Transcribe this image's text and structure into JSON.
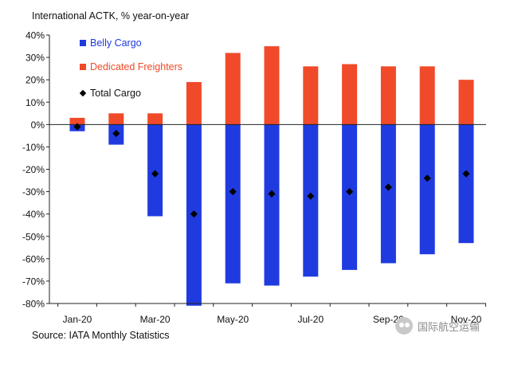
{
  "chart_data": {
    "type": "bar",
    "title": "International ACTK, % year-on-year",
    "source": "Source: IATA Monthly Statistics",
    "categories": [
      "Jan-20",
      "Feb-20",
      "Mar-20",
      "Apr-20",
      "May-20",
      "Jun-20",
      "Jul-20",
      "Aug-20",
      "Sep-20",
      "Oct-20",
      "Nov-20"
    ],
    "x_tick_labels": [
      "Jan-20",
      "",
      "Mar-20",
      "",
      "May-20",
      "",
      "Jul-20",
      "",
      "Sep-20",
      "",
      "Nov-20"
    ],
    "y_ticks": [
      40,
      30,
      20,
      10,
      0,
      -10,
      -20,
      -30,
      -40,
      -50,
      -60,
      -70,
      -80
    ],
    "y_tick_labels": [
      "40%",
      "30%",
      "20%",
      "10%",
      "0%",
      "-10%",
      "-20%",
      "-30%",
      "-40%",
      "-50%",
      "-60%",
      "-70%",
      "-80%"
    ],
    "ylim": [
      -80,
      40
    ],
    "xlabel": "",
    "ylabel": "",
    "grid": false,
    "legend_position": "top-left",
    "series": [
      {
        "name": "Belly Cargo",
        "kind": "bar",
        "color": "#1f3be0",
        "values": [
          -3,
          -9,
          -41,
          -81,
          -71,
          -72,
          -68,
          -65,
          -62,
          -58,
          -53
        ]
      },
      {
        "name": "Dedicated Freighters",
        "kind": "bar",
        "color": "#f04a2a",
        "values": [
          3,
          5,
          5,
          19,
          32,
          35,
          26,
          27,
          26,
          26,
          20
        ]
      },
      {
        "name": "Total Cargo",
        "kind": "marker",
        "marker": "diamond",
        "color": "#000000",
        "values": [
          -1,
          -4,
          -22,
          -40,
          -30,
          -31,
          -32,
          -30,
          -28,
          -24,
          -22
        ]
      }
    ]
  },
  "watermark": {
    "text": "国际航空运输",
    "icon": "wechat-icon"
  }
}
